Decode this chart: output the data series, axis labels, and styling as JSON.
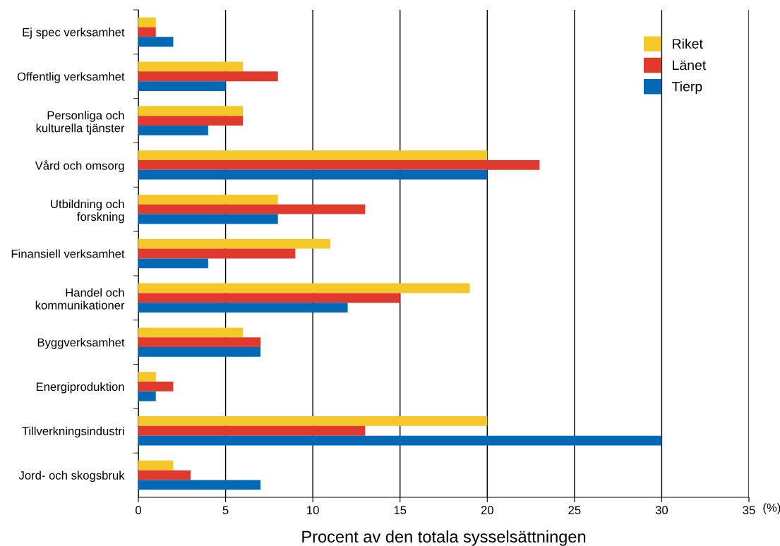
{
  "chart_data": {
    "type": "bar",
    "orientation": "horizontal",
    "categories": [
      "Ej spec verksamhet",
      "Offentlig verksamhet",
      "Personliga och\nkulturella tjänster",
      "Vård och omsorg",
      "Utbildning och\nforskning",
      "Finansiell verksamhet",
      "Handel och\nkommunikationer",
      "Byggverksamhet",
      "Energiproduktion",
      "Tillverkningsindustri",
      "Jord- och skogsbruk"
    ],
    "series": [
      {
        "name": "Riket",
        "color": "#f5c829",
        "values": [
          1,
          6,
          6,
          20,
          8,
          11,
          19,
          6,
          1,
          20,
          2
        ]
      },
      {
        "name": "Länet",
        "color": "#e03a2e",
        "values": [
          1,
          8,
          6,
          23,
          13,
          9,
          15,
          7,
          2,
          13,
          3
        ]
      },
      {
        "name": "Tierp",
        "color": "#0068b4",
        "values": [
          2,
          5,
          4,
          20,
          8,
          4,
          12,
          7,
          1,
          30,
          7
        ]
      }
    ],
    "xlabel": "Procent av den totala sysselsättningen",
    "annotations": [
      "(%)"
    ],
    "xlim": [
      0,
      35
    ],
    "xticks": [
      0,
      5,
      10,
      15,
      20,
      25,
      30,
      35
    ],
    "grid": "x",
    "legend": "top right"
  }
}
